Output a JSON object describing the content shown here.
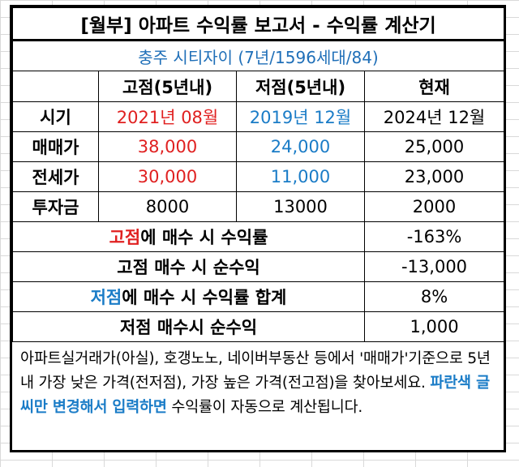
{
  "title": "[월부] 아파트 수익률 보고서 - 수익률 계산기",
  "subtitle": "충주 시티자이 (7년/1596세대/84)",
  "columns": [
    "고점(5년내)",
    "저점(5년내)",
    "현재"
  ],
  "rows": [
    {
      "label": "시기",
      "high": "2021년 08월",
      "low": "2019년 12월",
      "now": "2024년 12월"
    },
    {
      "label": "매매가",
      "high": "38,000",
      "low": "24,000",
      "now": "25,000"
    },
    {
      "label": "전세가",
      "high": "30,000",
      "low": "11,000",
      "now": "23,000"
    },
    {
      "label": "투자금",
      "high": "8000",
      "low": "13000",
      "now": "2000"
    }
  ],
  "results": [
    {
      "label_hl": "고점",
      "label_rest": "에 매수 시 수익률",
      "value": "-163%"
    },
    {
      "label_hl": "",
      "label_rest": "고점 매수 시 순수익",
      "value": "-13,000"
    },
    {
      "label_hl": "저점",
      "label_rest": "에 매수 시 수익률 합계",
      "value": "8%"
    },
    {
      "label_hl": "",
      "label_rest": "저점 매수시 순수익",
      "value": "1,000"
    }
  ],
  "note": {
    "part1": "아파트실거래가(아실), 호갱노노, 네이버부동산 등에서 '매매가'기준으로 5년 내 가장 낮은 가격(전저점), 가장 높은 가격(전고점)을 찾아보세요. ",
    "emphasis": "파란색 글씨만 변경해서 입력하면",
    "part2": " 수익률이 자동으로 계산됩니다."
  },
  "colors": {
    "red": "#e02020",
    "blue": "#1a7cc7"
  }
}
